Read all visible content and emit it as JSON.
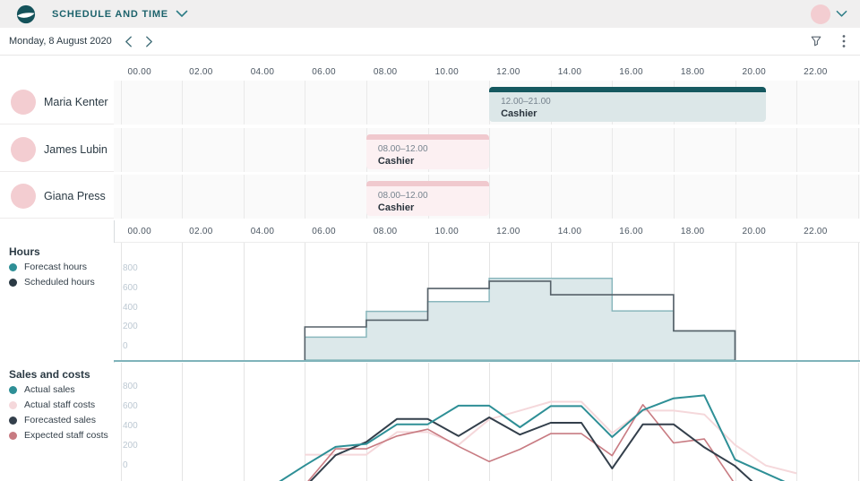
{
  "header": {
    "title": "SCHEDULE AND TIME"
  },
  "datebar": {
    "date": "Monday, 8 August 2020"
  },
  "icons": {
    "logo": "brand-swoosh-circle",
    "title_caret": "chevron-down",
    "user_caret": "chevron-down",
    "prev": "chevron-left",
    "next": "chevron-right",
    "filter": "funnel",
    "more": "kebab-vertical"
  },
  "theme": {
    "accent_teal": "#2E8F96",
    "dark_navy": "#2B3A44",
    "header_bg": "#F0EFEF",
    "avatar_pink": "#F3CDD1",
    "shift_teal_strip": "#15585F",
    "shift_teal_body": "#DCE7E8",
    "shift_pink_strip": "#F0C9CE",
    "shift_pink_body": "#FCF0F2",
    "baseline_teal": "#7FB3BA",
    "grid_line": "#E9E9E9",
    "tick_text": "#BCC8D2"
  },
  "timeline": {
    "labels": [
      "00.00",
      "02.00",
      "04.00",
      "06.00",
      "08.00",
      "10.00",
      "12.00",
      "14.00",
      "16.00",
      "18.00",
      "20.00",
      "22.00"
    ]
  },
  "schedule": {
    "employees": [
      {
        "name": "Maria Kenter",
        "shifts": [
          {
            "time": "12.00–21.00",
            "role": "Cashier",
            "start": 12,
            "end": 21,
            "theme": "teal"
          }
        ]
      },
      {
        "name": "James Lubin",
        "shifts": [
          {
            "time": "08.00–12.00",
            "role": "Cashier",
            "start": 8,
            "end": 12,
            "theme": "pink"
          }
        ]
      },
      {
        "name": "Giana Press",
        "shifts": [
          {
            "time": "08.00–12.00",
            "role": "Cashier",
            "start": 8,
            "end": 12,
            "theme": "pink"
          }
        ]
      }
    ]
  },
  "chart_data": [
    {
      "id": "hours",
      "type": "area",
      "title": "Hours",
      "x_axis_labels": [
        "00.00",
        "02.00",
        "04.00",
        "06.00",
        "08.00",
        "10.00",
        "12.00",
        "14.00",
        "16.00",
        "18.00",
        "20.00",
        "22.00"
      ],
      "y_ticks": [
        800,
        600,
        400,
        200,
        0
      ],
      "ylim": [
        0,
        1000
      ],
      "bucket_edges_hours": [
        6,
        8,
        10,
        12,
        14,
        16,
        18,
        20
      ],
      "series": [
        {
          "name": "Forecast hours",
          "color": "#2E8F96",
          "style": "filled-step",
          "stroke": "#8AB7BD",
          "fill": "#DCE8EA",
          "values": [
            235,
            500,
            600,
            840,
            840,
            505,
            300
          ]
        },
        {
          "name": "Scheduled hours",
          "color": "#2B3A44",
          "style": "outline-step",
          "stroke": "#566169",
          "values": [
            340,
            410,
            735,
            810,
            670,
            670,
            300
          ]
        }
      ]
    },
    {
      "id": "sales",
      "type": "line",
      "title": "Sales and costs",
      "y_ticks": [
        800,
        600,
        400,
        200,
        0
      ],
      "ylim": [
        0,
        1000
      ],
      "x_unit": "hour-of-day",
      "series": [
        {
          "name": "Actual sales",
          "color": "#2E8F96",
          "width": 2,
          "start_hour": 5,
          "values": [
            -60,
            140,
            330,
            360,
            560,
            560,
            750,
            750,
            530,
            745,
            745,
            430,
            705,
            825,
            855,
            200,
            60,
            -80
          ]
        },
        {
          "name": "Actual staff costs",
          "color": "#F5D8DB",
          "width": 2,
          "start_hour": 6,
          "values": [
            250,
            250,
            250,
            480,
            480,
            350,
            610,
            700,
            790,
            790,
            470,
            700,
            700,
            660,
            350,
            140,
            60
          ]
        },
        {
          "name": "Forecasted sales",
          "color": "#333F4B",
          "width": 2,
          "start_hour": 6,
          "values": [
            -80,
            245,
            380,
            615,
            615,
            440,
            630,
            455,
            575,
            575,
            110,
            560,
            560,
            325,
            135,
            -150
          ]
        },
        {
          "name": "Expected staff costs",
          "color": "#C87B82",
          "width": 1.6,
          "start_hour": 6,
          "values": [
            -60,
            310,
            310,
            440,
            510,
            335,
            180,
            305,
            465,
            465,
            240,
            760,
            370,
            410,
            -50
          ]
        }
      ]
    }
  ]
}
